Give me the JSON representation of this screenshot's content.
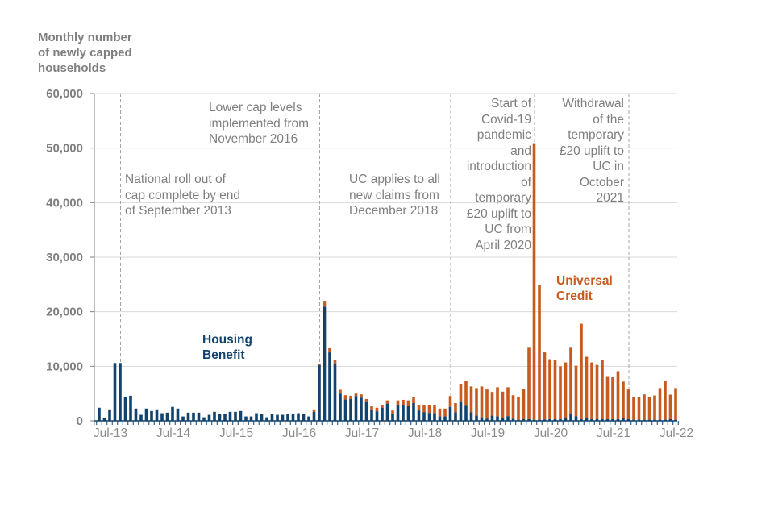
{
  "chart_data": {
    "type": "bar",
    "stacked": true,
    "title": "",
    "ylabel": "Monthly number of newly capped households",
    "xlabel": "",
    "ylim": [
      0,
      60000
    ],
    "yticks": [
      0,
      10000,
      20000,
      30000,
      40000,
      50000,
      60000
    ],
    "ytick_labels": [
      "0",
      "10,000",
      "20,000",
      "30,000",
      "40,000",
      "50,000",
      "60,000"
    ],
    "xtick_labels": [
      "Jul-13",
      "Jul-14",
      "Jul-15",
      "Jul-16",
      "Jul-17",
      "Jul-18",
      "Jul-19",
      "Jul-20",
      "Jul-21",
      "Jul-22"
    ],
    "grid": true,
    "start_month": "May-13",
    "end_month": "Jul-22",
    "series": [
      {
        "name": "Housing Benefit",
        "label_lines": [
          "Housing",
          "Benefit"
        ],
        "color": "#12436D",
        "values": [
          2400,
          500,
          2100,
          10600,
          10600,
          4400,
          4600,
          2250,
          1100,
          2250,
          1800,
          2100,
          1400,
          1500,
          2550,
          2250,
          800,
          1500,
          1500,
          1500,
          650,
          1100,
          1650,
          1200,
          1200,
          1650,
          1650,
          1800,
          800,
          800,
          1400,
          1200,
          650,
          1200,
          1100,
          1100,
          1200,
          1200,
          1400,
          1200,
          800,
          1650,
          10200,
          20900,
          12550,
          10500,
          5000,
          3900,
          4000,
          4550,
          4250,
          3600,
          2050,
          1750,
          2400,
          3150,
          1300,
          2950,
          2950,
          2800,
          3250,
          1900,
          1600,
          1450,
          1400,
          800,
          800,
          2550,
          1550,
          3600,
          2900,
          1550,
          950,
          650,
          400,
          950,
          800,
          500,
          850,
          400,
          200,
          300,
          300,
          200,
          200,
          250,
          300,
          300,
          300,
          450,
          1300,
          850,
          300,
          450,
          300,
          300,
          300,
          300,
          300,
          300,
          500,
          300,
          200,
          200,
          200,
          200,
          200,
          200,
          200,
          300,
          200
        ]
      },
      {
        "name": "Universal Credit",
        "label_lines": [
          "Universal",
          "Credit"
        ],
        "color": "#C8591F",
        "values": [
          0,
          0,
          0,
          0,
          0,
          0,
          0,
          0,
          0,
          0,
          0,
          0,
          0,
          0,
          0,
          0,
          0,
          0,
          0,
          0,
          0,
          0,
          0,
          0,
          0,
          0,
          0,
          0,
          0,
          0,
          0,
          0,
          0,
          0,
          0,
          0,
          0,
          0,
          0,
          0,
          0,
          450,
          300,
          1100,
          750,
          700,
          700,
          800,
          600,
          450,
          600,
          400,
          600,
          650,
          550,
          600,
          600,
          800,
          900,
          950,
          1050,
          1050,
          1350,
          1500,
          1550,
          1450,
          1450,
          2000,
          1700,
          3200,
          4400,
          4750,
          5050,
          5650,
          5350,
          4350,
          5350,
          4850,
          5300,
          4300,
          4150,
          5500,
          13100,
          50700,
          24700,
          12300,
          11000,
          10850,
          9700,
          10250,
          12100,
          9250,
          17500,
          11300,
          10400,
          9950,
          10850,
          7900,
          7750,
          8800,
          6700,
          5450,
          4200,
          4200,
          4650,
          4200,
          4450,
          5800,
          7150,
          4500,
          5800
        ]
      }
    ],
    "annotations": [
      {
        "month_index": 4,
        "lines": [
          "National roll out of",
          "cap complete by end",
          "of September 2013"
        ]
      },
      {
        "month_index": 42,
        "lines": [
          "Lower cap levels",
          "implemented from",
          "November 2016"
        ]
      },
      {
        "month_index": 67,
        "lines": [
          "UC applies to all",
          "new claims from",
          "December 2018"
        ]
      },
      {
        "month_index": 83,
        "lines": [
          "Start of",
          "Covid-19",
          "pandemic",
          "and",
          "introduction",
          "of",
          "temporary",
          "£20 uplift to",
          "UC from",
          "April 2020"
        ]
      },
      {
        "month_index": 101,
        "lines": [
          "Withdrawal",
          "of the",
          "temporary",
          "£20 uplift to",
          "UC in",
          "October",
          "2021"
        ]
      }
    ]
  }
}
